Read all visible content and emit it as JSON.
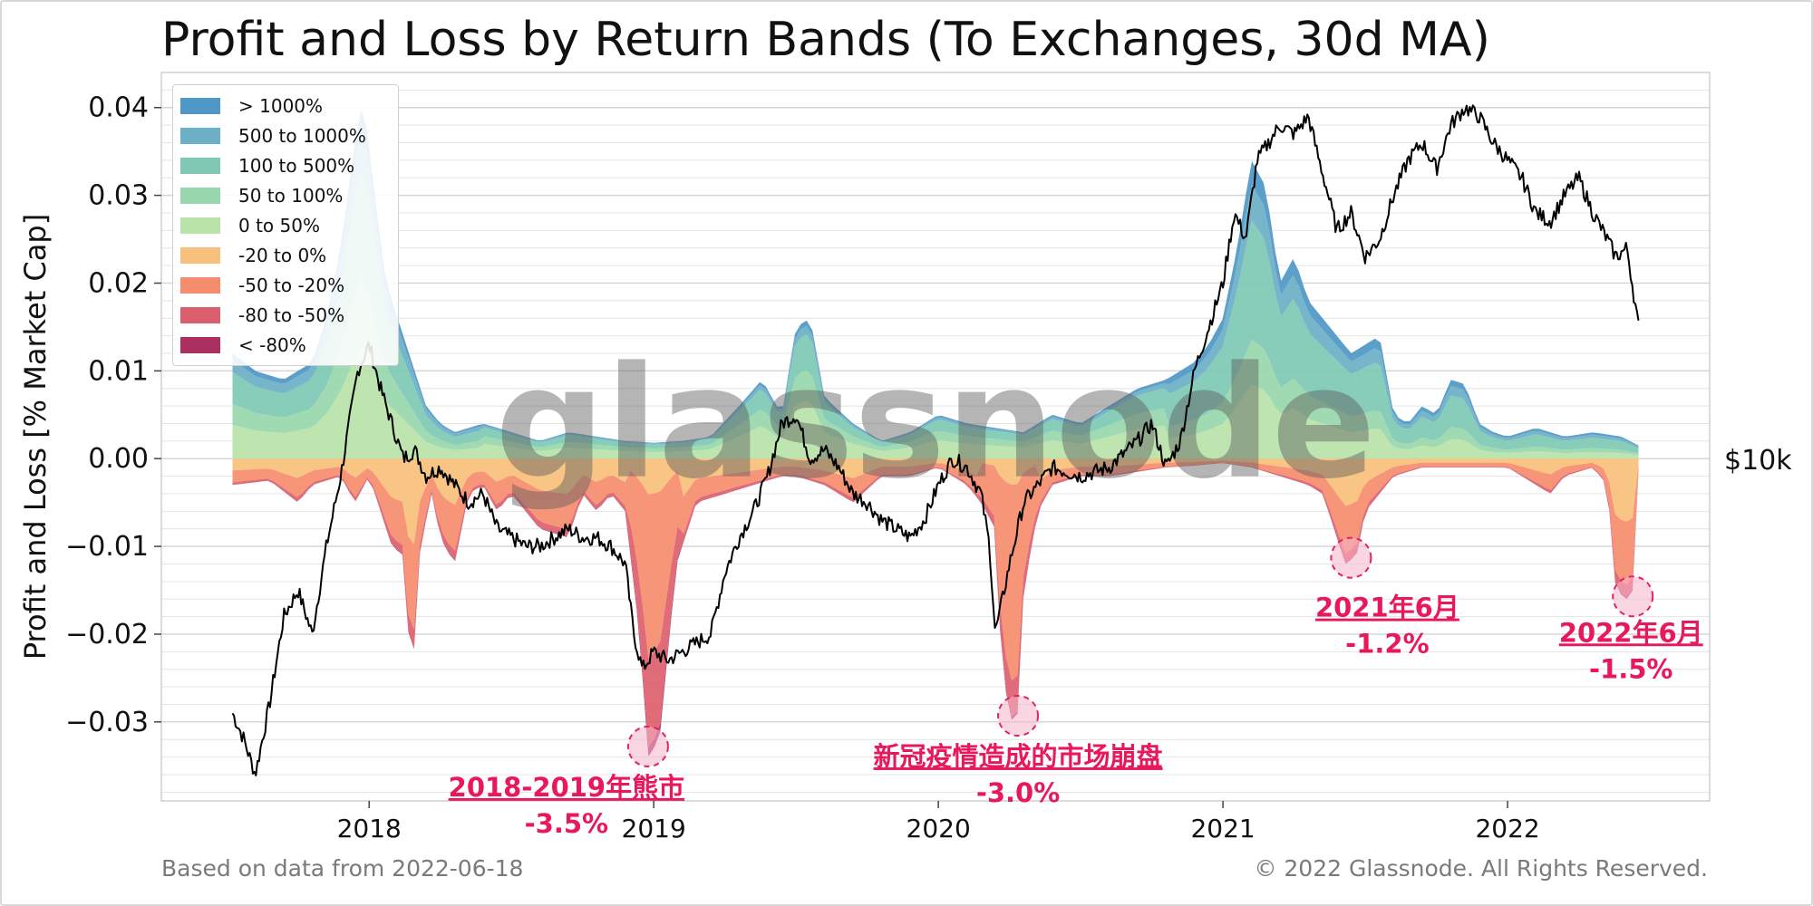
{
  "title": "Profit and Loss by Return Bands (To Exchanges, 30d MA)",
  "footer": {
    "source_note": "Based on data from 2022-06-18",
    "copyright": "© 2022 Glassnode. All Rights Reserved."
  },
  "watermark": "glassnode",
  "chart_data": {
    "type": "area",
    "ylabel": "Profit and Loss [% Market Cap]",
    "right_axis_label": "$10k",
    "ylim": [
      -0.039,
      0.044
    ],
    "y_ticks": [
      {
        "value": 0.04,
        "label": "0.04"
      },
      {
        "value": 0.03,
        "label": "0.03"
      },
      {
        "value": 0.02,
        "label": "0.02"
      },
      {
        "value": 0.01,
        "label": "0.01"
      },
      {
        "value": 0.0,
        "label": "0.00"
      },
      {
        "value": -0.01,
        "label": "−0.01"
      },
      {
        "value": -0.02,
        "label": "−0.02"
      },
      {
        "value": -0.03,
        "label": "−0.03"
      }
    ],
    "x_range": [
      2017.27,
      2022.71
    ],
    "x_ticks": [
      {
        "value": 2018.0,
        "label": "2018"
      },
      {
        "value": 2019.0,
        "label": "2019"
      },
      {
        "value": 2020.0,
        "label": "2020"
      },
      {
        "value": 2021.0,
        "label": "2021"
      },
      {
        "value": 2022.0,
        "label": "2022"
      }
    ],
    "grid": true,
    "legend_position": "top-left",
    "series": [
      {
        "name": "> 1000%",
        "color": "#4e97c6"
      },
      {
        "name": "500 to 1000%",
        "color": "#6bb0c5"
      },
      {
        "name": "100 to 500%",
        "color": "#7ec8b4"
      },
      {
        "name": "50 to 100%",
        "color": "#98d7ad"
      },
      {
        "name": "0 to 50%",
        "color": "#b9e3a9"
      },
      {
        "name": "-20 to 0%",
        "color": "#f7c07b"
      },
      {
        "name": "-50 to -20%",
        "color": "#f68c6e"
      },
      {
        "name": "-80 to -50%",
        "color": "#dc5f6d"
      },
      {
        "name": "< -80%",
        "color": "#ac2f62"
      }
    ],
    "profit_total": {
      "x": [
        2017.52,
        2017.6,
        2017.7,
        2017.8,
        2017.85,
        2017.9,
        2017.95,
        2017.98,
        2018.02,
        2018.06,
        2018.1,
        2018.15,
        2018.2,
        2018.25,
        2018.3,
        2018.4,
        2018.5,
        2018.6,
        2018.7,
        2018.8,
        2018.9,
        2019.0,
        2019.1,
        2019.2,
        2019.3,
        2019.38,
        2019.45,
        2019.5,
        2019.55,
        2019.6,
        2019.7,
        2019.8,
        2019.9,
        2020.0,
        2020.1,
        2020.2,
        2020.3,
        2020.4,
        2020.5,
        2020.6,
        2020.7,
        2020.8,
        2020.9,
        2020.95,
        2021.0,
        2021.05,
        2021.1,
        2021.15,
        2021.2,
        2021.25,
        2021.3,
        2021.35,
        2021.4,
        2021.45,
        2021.5,
        2021.55,
        2021.6,
        2021.65,
        2021.7,
        2021.75,
        2021.8,
        2021.85,
        2021.9,
        2021.95,
        2022.0,
        2022.1,
        2022.2,
        2022.3,
        2022.4,
        2022.46
      ],
      "y": [
        0.012,
        0.01,
        0.009,
        0.011,
        0.016,
        0.024,
        0.036,
        0.041,
        0.03,
        0.02,
        0.016,
        0.011,
        0.006,
        0.004,
        0.003,
        0.004,
        0.003,
        0.002,
        0.003,
        0.0025,
        0.002,
        0.0018,
        0.002,
        0.0025,
        0.006,
        0.009,
        0.005,
        0.015,
        0.016,
        0.007,
        0.004,
        0.002,
        0.003,
        0.005,
        0.004,
        0.0035,
        0.003,
        0.005,
        0.004,
        0.006,
        0.008,
        0.009,
        0.011,
        0.013,
        0.016,
        0.024,
        0.034,
        0.031,
        0.02,
        0.023,
        0.018,
        0.016,
        0.014,
        0.012,
        0.013,
        0.014,
        0.005,
        0.004,
        0.006,
        0.005,
        0.009,
        0.0085,
        0.004,
        0.003,
        0.0025,
        0.0035,
        0.0025,
        0.003,
        0.0025,
        0.0015
      ]
    },
    "loss_total": {
      "x": [
        2017.52,
        2017.65,
        2017.75,
        2017.8,
        2017.9,
        2017.95,
        2018.0,
        2018.05,
        2018.08,
        2018.12,
        2018.15,
        2018.18,
        2018.22,
        2018.25,
        2018.3,
        2018.35,
        2018.4,
        2018.45,
        2018.5,
        2018.6,
        2018.7,
        2018.75,
        2018.8,
        2018.85,
        2018.9,
        2018.95,
        2018.98,
        2019.02,
        2019.08,
        2019.15,
        2019.25,
        2019.35,
        2019.45,
        2019.5,
        2019.6,
        2019.7,
        2019.8,
        2019.9,
        2020.0,
        2020.1,
        2020.15,
        2020.2,
        2020.22,
        2020.25,
        2020.28,
        2020.3,
        2020.35,
        2020.4,
        2020.5,
        2020.6,
        2020.7,
        2020.8,
        2020.9,
        2021.0,
        2021.1,
        2021.2,
        2021.3,
        2021.35,
        2021.4,
        2021.43,
        2021.47,
        2021.5,
        2021.55,
        2021.6,
        2021.7,
        2021.8,
        2021.9,
        2022.0,
        2022.05,
        2022.1,
        2022.15,
        2022.2,
        2022.3,
        2022.35,
        2022.38,
        2022.42,
        2022.44,
        2022.46
      ],
      "y": [
        -0.003,
        -0.0025,
        -0.005,
        -0.003,
        -0.002,
        -0.005,
        -0.002,
        -0.007,
        -0.01,
        -0.011,
        -0.026,
        -0.01,
        -0.004,
        -0.009,
        -0.012,
        -0.004,
        -0.003,
        -0.006,
        -0.004,
        -0.008,
        -0.009,
        -0.004,
        -0.006,
        -0.004,
        -0.006,
        -0.02,
        -0.034,
        -0.032,
        -0.012,
        -0.005,
        -0.004,
        -0.003,
        -0.002,
        -0.002,
        -0.003,
        -0.005,
        -0.002,
        -0.002,
        -0.001,
        -0.003,
        -0.005,
        -0.008,
        -0.022,
        -0.03,
        -0.029,
        -0.015,
        -0.006,
        -0.003,
        -0.002,
        -0.002,
        -0.0015,
        -0.001,
        -0.0008,
        -0.0005,
        -0.001,
        -0.002,
        -0.003,
        -0.004,
        -0.009,
        -0.012,
        -0.011,
        -0.006,
        -0.004,
        -0.002,
        -0.001,
        -0.001,
        -0.001,
        -0.001,
        -0.002,
        -0.003,
        -0.004,
        -0.002,
        -0.001,
        -0.003,
        -0.015,
        -0.016,
        -0.015,
        -0.0015
      ]
    },
    "price_line": {
      "x": [
        2017.52,
        2017.56,
        2017.6,
        2017.65,
        2017.7,
        2017.75,
        2017.8,
        2017.85,
        2017.9,
        2017.93,
        2017.96,
        2018.0,
        2018.04,
        2018.08,
        2018.12,
        2018.16,
        2018.2,
        2018.25,
        2018.3,
        2018.35,
        2018.4,
        2018.45,
        2018.5,
        2018.55,
        2018.6,
        2018.65,
        2018.7,
        2018.75,
        2018.8,
        2018.85,
        2018.9,
        2018.93,
        2018.96,
        2019.0,
        2019.05,
        2019.1,
        2019.15,
        2019.2,
        2019.25,
        2019.3,
        2019.35,
        2019.4,
        2019.45,
        2019.5,
        2019.55,
        2019.6,
        2019.65,
        2019.7,
        2019.75,
        2019.8,
        2019.85,
        2019.9,
        2019.95,
        2020.0,
        2020.05,
        2020.1,
        2020.15,
        2020.18,
        2020.2,
        2020.25,
        2020.3,
        2020.35,
        2020.4,
        2020.5,
        2020.6,
        2020.7,
        2020.75,
        2020.8,
        2020.85,
        2020.9,
        2020.95,
        2021.0,
        2021.04,
        2021.08,
        2021.12,
        2021.16,
        2021.2,
        2021.25,
        2021.3,
        2021.33,
        2021.37,
        2021.4,
        2021.45,
        2021.5,
        2021.55,
        2021.6,
        2021.65,
        2021.7,
        2021.75,
        2021.8,
        2021.85,
        2021.9,
        2021.95,
        2022.0,
        2022.05,
        2022.1,
        2022.15,
        2022.2,
        2022.25,
        2022.3,
        2022.35,
        2022.38,
        2022.42,
        2022.46
      ],
      "y": [
        -0.029,
        -0.032,
        -0.036,
        -0.028,
        -0.018,
        -0.015,
        -0.02,
        -0.01,
        -0.002,
        0.004,
        0.01,
        0.013,
        0.008,
        0.004,
        0.0,
        0.001,
        -0.002,
        -0.001,
        -0.003,
        -0.005,
        -0.004,
        -0.008,
        -0.009,
        -0.01,
        -0.01,
        -0.009,
        -0.008,
        -0.009,
        -0.009,
        -0.01,
        -0.012,
        -0.02,
        -0.024,
        -0.022,
        -0.023,
        -0.022,
        -0.021,
        -0.02,
        -0.013,
        -0.009,
        -0.006,
        -0.002,
        0.004,
        0.005,
        0.0,
        0.001,
        -0.001,
        -0.004,
        -0.005,
        -0.007,
        -0.008,
        -0.009,
        -0.007,
        -0.003,
        0.0,
        -0.001,
        -0.004,
        -0.01,
        -0.02,
        -0.012,
        -0.005,
        -0.003,
        -0.001,
        -0.002,
        -0.001,
        0.002,
        0.004,
        -0.001,
        0.002,
        0.01,
        0.015,
        0.02,
        0.028,
        0.025,
        0.034,
        0.036,
        0.038,
        0.037,
        0.039,
        0.035,
        0.03,
        0.026,
        0.028,
        0.023,
        0.025,
        0.03,
        0.034,
        0.036,
        0.033,
        0.038,
        0.04,
        0.039,
        0.036,
        0.034,
        0.032,
        0.028,
        0.027,
        0.03,
        0.032,
        0.028,
        0.025,
        0.023,
        0.024,
        0.015
      ]
    },
    "annotations": [
      {
        "label": "2018-2019年熊市",
        "value_label": "-3.5%",
        "x": 2018.98,
        "y": -0.0328
      },
      {
        "label": "新冠疫情造成的市场崩盘",
        "value_label": "-3.0%",
        "x": 2020.28,
        "y": -0.0293
      },
      {
        "label": "2021年6月",
        "value_label": "-1.2%",
        "x": 2021.45,
        "y": -0.0113
      },
      {
        "label": "2022年6月",
        "value_label": "-1.5%",
        "x": 2022.44,
        "y": -0.0157
      }
    ]
  }
}
